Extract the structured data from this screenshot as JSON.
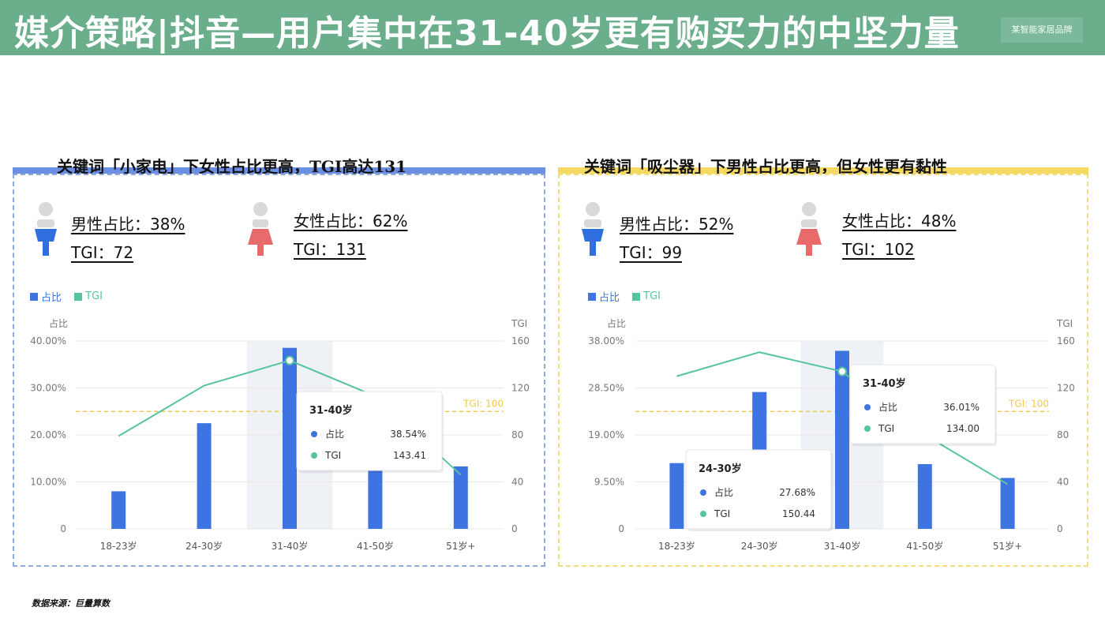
{
  "header": {
    "title": "媒介策略|抖音—用户集中在31-40岁更有购买力的中坚力量",
    "brand": "某智能家居品牌"
  },
  "panels": [
    {
      "title": "关键词「小家电」下女性占比更高，TGI高达131",
      "male": {
        "ratio": "男性占比：38%",
        "tgi": "TGI：72"
      },
      "female": {
        "ratio": "女性占比：62%",
        "tgi": "TGI：131"
      },
      "legend": {
        "share": "占比",
        "tgi": "TGI"
      }
    },
    {
      "title": "关键词「吸尘器」下男性占比更高，但女性更有黏性",
      "male": {
        "ratio": "男性占比：52%",
        "tgi": "TGI：99"
      },
      "female": {
        "ratio": "女性占比：48%",
        "tgi": "TGI：102"
      },
      "legend": {
        "share": "占比",
        "tgi": "TGI"
      }
    }
  ],
  "chart_data": [
    {
      "type": "bar",
      "categories": [
        "18-23岁",
        "24-30岁",
        "31-40岁",
        "41-50岁",
        "51岁+"
      ],
      "series": [
        {
          "name": "占比",
          "values": [
            8.0,
            22.5,
            38.54,
            17.0,
            13.3
          ],
          "axis": "left"
        },
        {
          "name": "TGI",
          "type": "line",
          "values": [
            79,
            122,
            143.41,
            113,
            46
          ],
          "axis": "right"
        }
      ],
      "ylabel": "占比",
      "y2label": "TGI",
      "ylim": [
        0,
        40
      ],
      "y2lim": [
        0,
        160
      ],
      "yticks": [
        "0",
        "10.00%",
        "20.00%",
        "30.00%",
        "40.00%"
      ],
      "y2ticks": [
        "0",
        "40",
        "80",
        "120",
        "160"
      ],
      "reference": {
        "label": "TGI: 100",
        "value": 100
      },
      "highlight_category": "31-40岁",
      "tooltips": [
        {
          "category": "31-40岁",
          "rows": [
            {
              "name": "占比",
              "value": "38.54%"
            },
            {
              "name": "TGI",
              "value": "143.41"
            }
          ]
        }
      ],
      "colors": {
        "bar": "#3e74e2",
        "line": "#57c4a0",
        "reference": "#f2c94c"
      }
    },
    {
      "type": "bar",
      "categories": [
        "18-23岁",
        "24-30岁",
        "31-40岁",
        "41-50岁",
        "51岁+"
      ],
      "series": [
        {
          "name": "占比",
          "values": [
            13.3,
            27.68,
            36.01,
            13.1,
            10.3
          ],
          "axis": "left"
        },
        {
          "name": "TGI",
          "type": "line",
          "values": [
            130,
            150.44,
            134.0,
            80,
            38
          ],
          "axis": "right"
        }
      ],
      "ylabel": "占比",
      "y2label": "TGI",
      "ylim": [
        0,
        38
      ],
      "y2lim": [
        0,
        160
      ],
      "yticks": [
        "0",
        "9.50%",
        "19.00%",
        "28.50%",
        "38.00%"
      ],
      "y2ticks": [
        "0",
        "40",
        "80",
        "120",
        "160"
      ],
      "reference": {
        "label": "TGI: 100",
        "value": 100
      },
      "highlight_category": "31-40岁",
      "tooltips": [
        {
          "category": "31-40岁",
          "rows": [
            {
              "name": "占比",
              "value": "36.01%"
            },
            {
              "name": "TGI",
              "value": "134.00"
            }
          ]
        },
        {
          "category": "24-30岁",
          "rows": [
            {
              "name": "占比",
              "value": "27.68%"
            },
            {
              "name": "TGI",
              "value": "150.44"
            }
          ]
        }
      ],
      "colors": {
        "bar": "#3e74e2",
        "line": "#57c4a0",
        "reference": "#f2c94c"
      }
    }
  ],
  "source": "数据来源：巨量算数"
}
